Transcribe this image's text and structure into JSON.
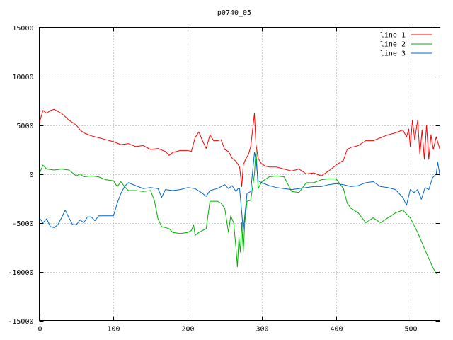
{
  "chart_data": {
    "type": "line",
    "title": "p0740_05",
    "xlabel": "",
    "ylabel": "",
    "xlim": [
      0,
      540
    ],
    "ylim": [
      -15000,
      15000
    ],
    "x_ticks": [
      0,
      100,
      200,
      300,
      400,
      500
    ],
    "y_ticks": [
      -15000,
      -10000,
      -5000,
      0,
      5000,
      10000,
      15000
    ],
    "grid": true,
    "legend_position": "top-right",
    "series": [
      {
        "name": "line 1",
        "color": "#ff0000",
        "points": [
          [
            0,
            5200
          ],
          [
            5,
            6500
          ],
          [
            10,
            6200
          ],
          [
            15,
            6500
          ],
          [
            20,
            6600
          ],
          [
            30,
            6200
          ],
          [
            40,
            5500
          ],
          [
            50,
            5000
          ],
          [
            55,
            4500
          ],
          [
            60,
            4200
          ],
          [
            70,
            3900
          ],
          [
            80,
            3700
          ],
          [
            90,
            3500
          ],
          [
            100,
            3300
          ],
          [
            110,
            3000
          ],
          [
            120,
            3100
          ],
          [
            130,
            2800
          ],
          [
            140,
            2900
          ],
          [
            150,
            2500
          ],
          [
            160,
            2600
          ],
          [
            170,
            2300
          ],
          [
            175,
            1900
          ],
          [
            180,
            2200
          ],
          [
            190,
            2400
          ],
          [
            200,
            2400
          ],
          [
            205,
            2300
          ],
          [
            210,
            3700
          ],
          [
            215,
            4300
          ],
          [
            220,
            3400
          ],
          [
            225,
            2600
          ],
          [
            230,
            4000
          ],
          [
            235,
            3400
          ],
          [
            240,
            3400
          ],
          [
            245,
            3500
          ],
          [
            250,
            2500
          ],
          [
            255,
            2300
          ],
          [
            260,
            1600
          ],
          [
            265,
            1300
          ],
          [
            270,
            700
          ],
          [
            273,
            -1300
          ],
          [
            275,
            900
          ],
          [
            278,
            1500
          ],
          [
            282,
            2000
          ],
          [
            285,
            2800
          ],
          [
            290,
            6200
          ],
          [
            292,
            3000
          ],
          [
            295,
            1600
          ],
          [
            300,
            1000
          ],
          [
            305,
            800
          ],
          [
            310,
            700
          ],
          [
            320,
            700
          ],
          [
            330,
            500
          ],
          [
            340,
            300
          ],
          [
            350,
            500
          ],
          [
            360,
            0
          ],
          [
            370,
            100
          ],
          [
            380,
            -200
          ],
          [
            390,
            300
          ],
          [
            400,
            900
          ],
          [
            410,
            1400
          ],
          [
            415,
            2500
          ],
          [
            420,
            2700
          ],
          [
            430,
            2900
          ],
          [
            440,
            3400
          ],
          [
            450,
            3400
          ],
          [
            460,
            3700
          ],
          [
            470,
            4000
          ],
          [
            480,
            4200
          ],
          [
            490,
            4500
          ],
          [
            495,
            3800
          ],
          [
            498,
            4600
          ],
          [
            500,
            2800
          ],
          [
            503,
            5500
          ],
          [
            506,
            3500
          ],
          [
            510,
            5500
          ],
          [
            513,
            2000
          ],
          [
            516,
            4500
          ],
          [
            519,
            1500
          ],
          [
            522,
            5000
          ],
          [
            525,
            1500
          ],
          [
            528,
            4000
          ],
          [
            531,
            2500
          ],
          [
            535,
            3800
          ],
          [
            540,
            2500
          ]
        ]
      },
      {
        "name": "line 2",
        "color": "#00b000",
        "points": [
          [
            0,
            0
          ],
          [
            5,
            900
          ],
          [
            10,
            500
          ],
          [
            20,
            400
          ],
          [
            30,
            500
          ],
          [
            40,
            400
          ],
          [
            50,
            -200
          ],
          [
            55,
            0
          ],
          [
            60,
            -300
          ],
          [
            70,
            -200
          ],
          [
            80,
            -300
          ],
          [
            90,
            -600
          ],
          [
            100,
            -700
          ],
          [
            105,
            -1300
          ],
          [
            110,
            -800
          ],
          [
            115,
            -1300
          ],
          [
            120,
            -1700
          ],
          [
            130,
            -1700
          ],
          [
            140,
            -1800
          ],
          [
            150,
            -1700
          ],
          [
            155,
            -2700
          ],
          [
            160,
            -4600
          ],
          [
            165,
            -5400
          ],
          [
            170,
            -5500
          ],
          [
            175,
            -5600
          ],
          [
            180,
            -6000
          ],
          [
            190,
            -6100
          ],
          [
            200,
            -6000
          ],
          [
            205,
            -5800
          ],
          [
            208,
            -5200
          ],
          [
            210,
            -6300
          ],
          [
            215,
            -6000
          ],
          [
            220,
            -5800
          ],
          [
            225,
            -5600
          ],
          [
            230,
            -2800
          ],
          [
            240,
            -2800
          ],
          [
            245,
            -3000
          ],
          [
            250,
            -3500
          ],
          [
            255,
            -6000
          ],
          [
            258,
            -4300
          ],
          [
            262,
            -5000
          ],
          [
            265,
            -7500
          ],
          [
            267,
            -9500
          ],
          [
            269,
            -6500
          ],
          [
            271,
            -8000
          ],
          [
            273,
            -5000
          ],
          [
            275,
            -8000
          ],
          [
            277,
            -5000
          ],
          [
            280,
            -2800
          ],
          [
            285,
            -2700
          ],
          [
            290,
            0
          ],
          [
            292,
            2500
          ],
          [
            295,
            -1500
          ],
          [
            300,
            -800
          ],
          [
            310,
            -300
          ],
          [
            320,
            -200
          ],
          [
            330,
            -300
          ],
          [
            340,
            -1800
          ],
          [
            350,
            -1900
          ],
          [
            360,
            -900
          ],
          [
            370,
            -900
          ],
          [
            380,
            -600
          ],
          [
            390,
            -500
          ],
          [
            400,
            -500
          ],
          [
            405,
            -1000
          ],
          [
            410,
            -1500
          ],
          [
            415,
            -3000
          ],
          [
            420,
            -3500
          ],
          [
            430,
            -4000
          ],
          [
            440,
            -5000
          ],
          [
            450,
            -4500
          ],
          [
            460,
            -5000
          ],
          [
            470,
            -4500
          ],
          [
            480,
            -4000
          ],
          [
            490,
            -3700
          ],
          [
            500,
            -4500
          ],
          [
            510,
            -6000
          ],
          [
            520,
            -7800
          ],
          [
            530,
            -9500
          ],
          [
            535,
            -10200
          ],
          [
            540,
            -10000
          ]
        ]
      },
      {
        "name": "line 3",
        "color": "#0066cc",
        "points": [
          [
            0,
            -4500
          ],
          [
            5,
            -5000
          ],
          [
            10,
            -4600
          ],
          [
            15,
            -5400
          ],
          [
            20,
            -5500
          ],
          [
            25,
            -5200
          ],
          [
            30,
            -4500
          ],
          [
            35,
            -3700
          ],
          [
            40,
            -4500
          ],
          [
            45,
            -5200
          ],
          [
            50,
            -5200
          ],
          [
            55,
            -4700
          ],
          [
            60,
            -5000
          ],
          [
            65,
            -4400
          ],
          [
            70,
            -4400
          ],
          [
            75,
            -4800
          ],
          [
            80,
            -4300
          ],
          [
            90,
            -4300
          ],
          [
            100,
            -4300
          ],
          [
            105,
            -3000
          ],
          [
            110,
            -2000
          ],
          [
            115,
            -1300
          ],
          [
            120,
            -900
          ],
          [
            130,
            -1200
          ],
          [
            140,
            -1500
          ],
          [
            150,
            -1400
          ],
          [
            160,
            -1500
          ],
          [
            165,
            -2400
          ],
          [
            170,
            -1600
          ],
          [
            180,
            -1700
          ],
          [
            190,
            -1600
          ],
          [
            200,
            -1400
          ],
          [
            210,
            -1500
          ],
          [
            220,
            -2000
          ],
          [
            225,
            -2300
          ],
          [
            230,
            -1700
          ],
          [
            240,
            -1500
          ],
          [
            250,
            -1100
          ],
          [
            255,
            -1500
          ],
          [
            260,
            -1200
          ],
          [
            265,
            -1800
          ],
          [
            268,
            -1500
          ],
          [
            270,
            -1500
          ],
          [
            273,
            -4000
          ],
          [
            275,
            -5800
          ],
          [
            278,
            -3500
          ],
          [
            280,
            -2000
          ],
          [
            285,
            -1800
          ],
          [
            290,
            2200
          ],
          [
            292,
            1500
          ],
          [
            295,
            -700
          ],
          [
            300,
            -900
          ],
          [
            310,
            -1200
          ],
          [
            320,
            -1400
          ],
          [
            330,
            -1500
          ],
          [
            340,
            -1600
          ],
          [
            350,
            -1500
          ],
          [
            360,
            -1400
          ],
          [
            370,
            -1300
          ],
          [
            380,
            -1300
          ],
          [
            390,
            -1100
          ],
          [
            400,
            -1000
          ],
          [
            410,
            -1100
          ],
          [
            420,
            -1300
          ],
          [
            430,
            -1200
          ],
          [
            440,
            -900
          ],
          [
            450,
            -800
          ],
          [
            460,
            -1300
          ],
          [
            470,
            -1400
          ],
          [
            480,
            -1600
          ],
          [
            490,
            -2400
          ],
          [
            495,
            -3200
          ],
          [
            500,
            -1600
          ],
          [
            505,
            -1900
          ],
          [
            510,
            -1600
          ],
          [
            515,
            -2600
          ],
          [
            520,
            -1400
          ],
          [
            525,
            -1600
          ],
          [
            530,
            -400
          ],
          [
            535,
            0
          ],
          [
            537,
            1200
          ],
          [
            540,
            -200
          ]
        ]
      }
    ]
  }
}
